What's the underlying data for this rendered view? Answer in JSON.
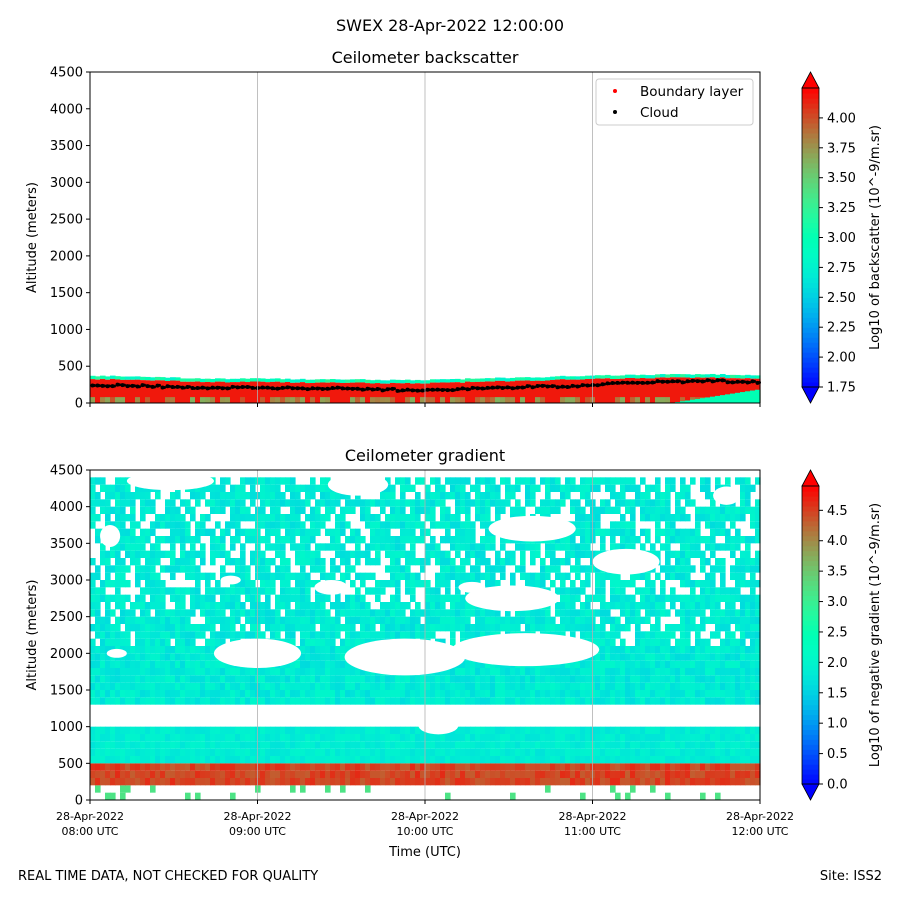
{
  "figure": {
    "title": "SWEX 28-Apr-2022 12:00:00",
    "footer_left": "REAL TIME DATA, NOT CHECKED FOR QUALITY",
    "footer_right": "Site: ISS2"
  },
  "chart_data": [
    {
      "type": "heatmap",
      "title": "Ceilometer backscatter",
      "xlabel": "",
      "ylabel": "Altitude (meters)",
      "ylim": [
        0,
        4500
      ],
      "yticks": [
        0,
        500,
        1000,
        1500,
        2000,
        2500,
        3000,
        3500,
        4000,
        4500
      ],
      "xlim": [
        8.0,
        12.0
      ],
      "x_tick_values": [
        8,
        9,
        10,
        11,
        12
      ],
      "xgrid": true,
      "colorbar": {
        "label": "Log10 of backscatter (10^-9/m.sr)",
        "range": [
          1.75,
          4.25
        ],
        "ticks": [
          "1.75",
          "2.00",
          "2.25",
          "2.50",
          "2.75",
          "3.00",
          "3.25",
          "3.50",
          "3.75",
          "4.00"
        ]
      },
      "legend": {
        "position": "top-right",
        "entries": [
          {
            "label": "Boundary layer",
            "color": "#ff0000"
          },
          {
            "label": "Cloud",
            "color": "#000000"
          }
        ]
      },
      "layers": {
        "signal_top_m": [
          370,
          360,
          340,
          330,
          330,
          320,
          320,
          310,
          320,
          340,
          350,
          370,
          380,
          390,
          390,
          380
        ],
        "cloud_base_m": [
          240,
          235,
          215,
          210,
          205,
          200,
          195,
          175,
          185,
          205,
          220,
          230,
          270,
          290,
          300,
          280
        ]
      }
    },
    {
      "type": "heatmap",
      "title": "Ceilometer gradient",
      "xlabel": "Time (UTC)",
      "ylabel": "Altitude (meters)",
      "ylim": [
        0,
        4500
      ],
      "yticks": [
        0,
        500,
        1000,
        1500,
        2000,
        2500,
        3000,
        3500,
        4000,
        4500
      ],
      "xlim": [
        8.0,
        12.0
      ],
      "x_tick_values": [
        8,
        9,
        10,
        11,
        12
      ],
      "x_tick_labels": [
        {
          "date": "28-Apr-2022",
          "time": "08:00 UTC"
        },
        {
          "date": "28-Apr-2022",
          "time": "09:00 UTC"
        },
        {
          "date": "28-Apr-2022",
          "time": "10:00 UTC"
        },
        {
          "date": "28-Apr-2022",
          "time": "11:00 UTC"
        },
        {
          "date": "28-Apr-2022",
          "time": "12:00 UTC"
        }
      ],
      "xgrid": true,
      "colorbar": {
        "label": "Log10 of negative gradient (10^-9/m.sr)",
        "range": [
          0.0,
          4.9
        ],
        "ticks": [
          "0.0",
          "0.5",
          "1.0",
          "1.5",
          "2.0",
          "2.5",
          "3.0",
          "3.5",
          "4.0",
          "4.5"
        ]
      },
      "layers": {
        "surface_red_band_m": [
          120,
          430
        ],
        "lower_gap_m": [
          930,
          1270
        ],
        "upper_field_top_m": 4400
      }
    }
  ]
}
